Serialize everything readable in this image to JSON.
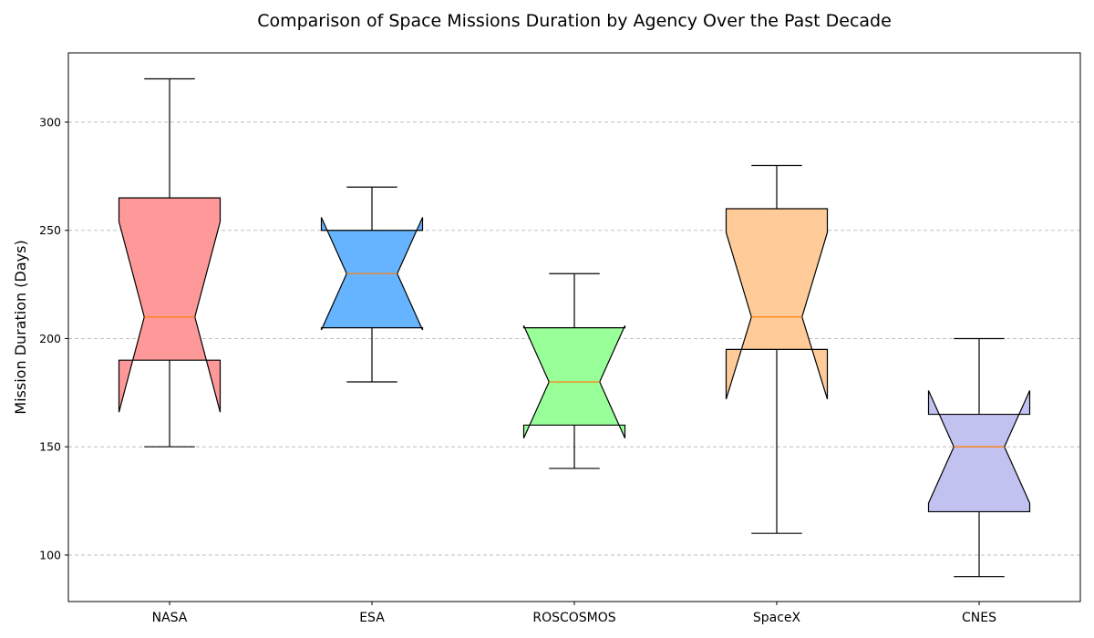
{
  "chart_data": {
    "type": "boxplot",
    "title": "Comparison of Space Missions Duration by Agency Over the Past Decade",
    "xlabel": "",
    "ylabel": "Mission Duration (Days)",
    "ylim": [
      78.5,
      332
    ],
    "yticks": [
      100,
      150,
      200,
      250,
      300
    ],
    "grid": {
      "y": true,
      "style": "dashed"
    },
    "notched": true,
    "median_color": "#ff7f0e",
    "categories": [
      "NASA",
      "ESA",
      "ROSCOSMOS",
      "SpaceX",
      "CNES"
    ],
    "boxes": [
      {
        "name": "NASA",
        "whislo": 150,
        "q1": 190,
        "med": 210,
        "q3": 265,
        "whishi": 320,
        "cilo": 166,
        "cihi": 254,
        "color": "#ff9999"
      },
      {
        "name": "ESA",
        "whislo": 180,
        "q1": 205,
        "med": 230,
        "q3": 250,
        "whishi": 270,
        "cilo": 204,
        "cihi": 256,
        "color": "#66b3ff"
      },
      {
        "name": "ROSCOSMOS",
        "whislo": 140,
        "q1": 160,
        "med": 180,
        "q3": 205,
        "whishi": 230,
        "cilo": 154,
        "cihi": 206,
        "color": "#99ff99"
      },
      {
        "name": "SpaceX",
        "whislo": 110,
        "q1": 195,
        "med": 210,
        "q3": 260,
        "whishi": 280,
        "cilo": 172,
        "cihi": 249,
        "color": "#ffcc99"
      },
      {
        "name": "CNES",
        "whislo": 90,
        "q1": 120,
        "med": 150,
        "q3": 165,
        "whishi": 200,
        "cilo": 124,
        "cihi": 176,
        "color": "#c2c2f0"
      }
    ]
  }
}
